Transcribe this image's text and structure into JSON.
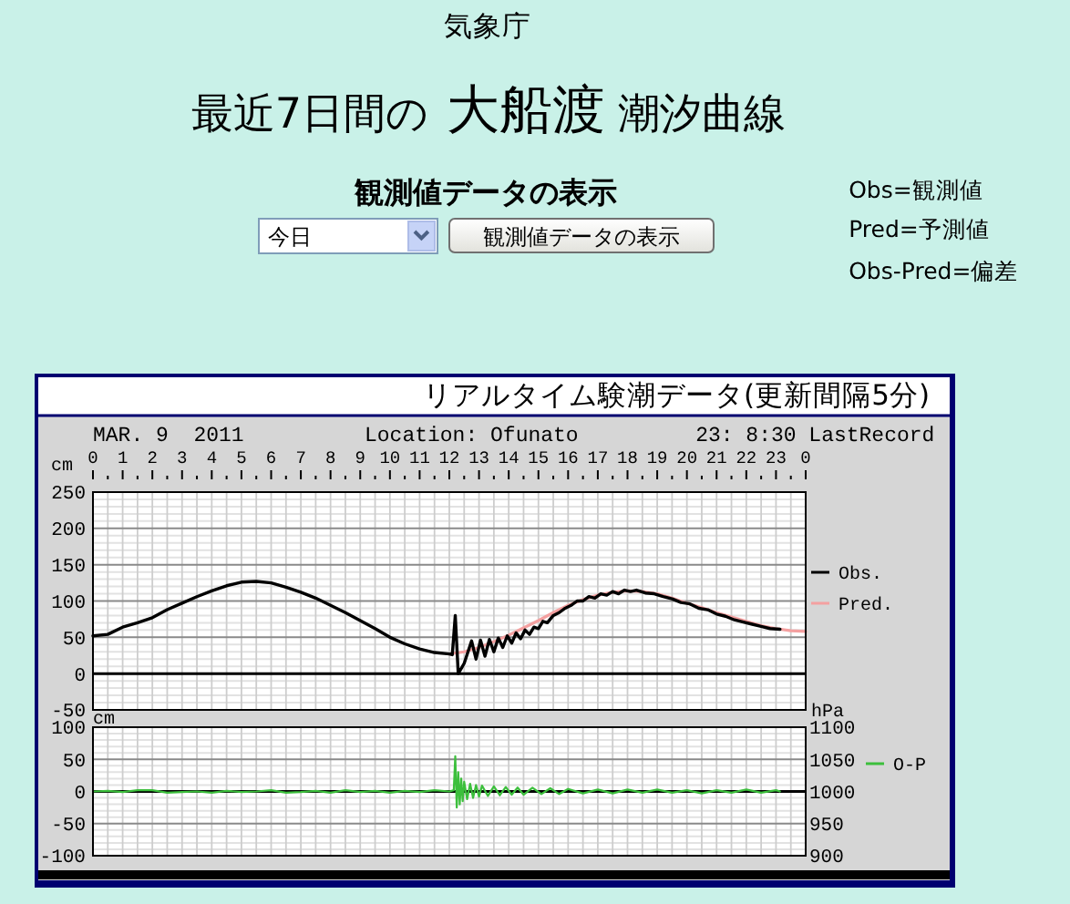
{
  "chart_data": [
    {
      "type": "line",
      "title": "最近7日間の 大船渡 潮汐曲線",
      "subtitle": "リアルタイム験潮データ(更新間隔5分)",
      "ylabel": "cm",
      "annotations": [
        "気象庁",
        "観測値データの表示",
        "今日",
        "観測値データの表示",
        "Obs=観測値",
        "Pred=予測値",
        "Obs-Pred=偏差",
        "MAR. 9  2011",
        "Location: Ofunato",
        "23: 8:30 LastRecord"
      ],
      "xlim": [
        "2011-03-09T00:00",
        "2011-03-10T00:00"
      ],
      "xticks": [
        {
          "value": "2011-03-09T00:00",
          "label": "0"
        },
        {
          "value": "2011-03-09T00:30",
          "label": null
        },
        {
          "value": "2011-03-09T01:00",
          "label": "1"
        },
        {
          "value": "2011-03-09T01:30",
          "label": null
        },
        {
          "value": "2011-03-09T02:00",
          "label": "2"
        },
        {
          "value": "2011-03-09T02:30",
          "label": null
        },
        {
          "value": "2011-03-09T03:00",
          "label": "3"
        },
        {
          "value": "2011-03-09T03:30",
          "label": null
        },
        {
          "value": "2011-03-09T04:00",
          "label": "4"
        },
        {
          "value": "2011-03-09T04:30",
          "label": null
        },
        {
          "value": "2011-03-09T05:00",
          "label": "5"
        },
        {
          "value": "2011-03-09T05:30",
          "label": null
        },
        {
          "value": "2011-03-09T06:00",
          "label": "6"
        },
        {
          "value": "2011-03-09T06:30",
          "label": null
        },
        {
          "value": "2011-03-09T07:00",
          "label": "7"
        },
        {
          "value": "2011-03-09T07:30",
          "label": null
        },
        {
          "value": "2011-03-09T08:00",
          "label": "8"
        },
        {
          "value": "2011-03-09T08:30",
          "label": null
        },
        {
          "value": "2011-03-09T09:00",
          "label": "9"
        },
        {
          "value": "2011-03-09T09:30",
          "label": null
        },
        {
          "value": "2011-03-09T10:00",
          "label": "10"
        },
        {
          "value": "2011-03-09T10:30",
          "label": null
        },
        {
          "value": "2011-03-09T11:00",
          "label": "11"
        },
        {
          "value": "2011-03-09T11:30",
          "label": null
        },
        {
          "value": "2011-03-09T12:00",
          "label": "12"
        },
        {
          "value": "2011-03-09T12:30",
          "label": null
        },
        {
          "value": "2011-03-09T13:00",
          "label": "13"
        },
        {
          "value": "2011-03-09T13:30",
          "label": null
        },
        {
          "value": "2011-03-09T14:00",
          "label": "14"
        },
        {
          "value": "2011-03-09T14:30",
          "label": null
        },
        {
          "value": "2011-03-09T15:00",
          "label": "15"
        },
        {
          "value": "2011-03-09T15:30",
          "label": null
        },
        {
          "value": "2011-03-09T16:00",
          "label": "16"
        },
        {
          "value": "2011-03-09T16:30",
          "label": null
        },
        {
          "value": "2011-03-09T17:00",
          "label": "17"
        },
        {
          "value": "2011-03-09T17:30",
          "label": null
        },
        {
          "value": "2011-03-09T18:00",
          "label": "18"
        },
        {
          "value": "2011-03-09T18:30",
          "label": null
        },
        {
          "value": "2011-03-09T19:00",
          "label": "19"
        },
        {
          "value": "2011-03-09T19:30",
          "label": null
        },
        {
          "value": "2011-03-09T20:00",
          "label": "20"
        },
        {
          "value": "2011-03-09T20:30",
          "label": null
        },
        {
          "value": "2011-03-09T21:00",
          "label": "21"
        },
        {
          "value": "2011-03-09T21:30",
          "label": null
        },
        {
          "value": "2011-03-09T22:00",
          "label": "22"
        },
        {
          "value": "2011-03-09T22:30",
          "label": null
        },
        {
          "value": "2011-03-09T23:00",
          "label": "23"
        },
        {
          "value": "2011-03-09T23:30",
          "label": null
        },
        {
          "value": "2011-03-10T00:00",
          "label": "0"
        }
      ],
      "ylim": [
        -50,
        250
      ],
      "yticks": [
        -50,
        {
          "value": -40,
          "label": null
        },
        {
          "value": -30,
          "label": null
        },
        {
          "value": -20,
          "label": null
        },
        {
          "value": -10,
          "label": null
        },
        0,
        {
          "value": 10,
          "label": null
        },
        {
          "value": 20,
          "label": null
        },
        {
          "value": 30,
          "label": null
        },
        {
          "value": 40,
          "label": null
        },
        50,
        {
          "value": 60,
          "label": null
        },
        {
          "value": 70,
          "label": null
        },
        {
          "value": 80,
          "label": null
        },
        {
          "value": 90,
          "label": null
        },
        100,
        {
          "value": 110,
          "label": null
        },
        {
          "value": 120,
          "label": null
        },
        {
          "value": 130,
          "label": null
        },
        {
          "value": 140,
          "label": null
        },
        150,
        {
          "value": 160,
          "label": null
        },
        {
          "value": 170,
          "label": null
        },
        {
          "value": 180,
          "label": null
        },
        {
          "value": 190,
          "label": null
        },
        200,
        {
          "value": 210,
          "label": null
        },
        {
          "value": 220,
          "label": null
        },
        {
          "value": 230,
          "label": null
        },
        {
          "value": 240,
          "label": null
        },
        250
      ],
      "grid": true,
      "legend": "right",
      "ref_lines": [
        {
          "axis": "y",
          "value": 0,
          "color": "#000000"
        }
      ],
      "series": [
        {
          "name": "Obs.",
          "color": "#000000",
          "x": [
            "2011-03-09T00:00",
            "2011-03-09T00:30",
            "2011-03-09T01:00",
            "2011-03-09T01:30",
            "2011-03-09T02:00",
            "2011-03-09T02:30",
            "2011-03-09T03:00",
            "2011-03-09T03:30",
            "2011-03-09T04:00",
            "2011-03-09T04:30",
            "2011-03-09T05:00",
            "2011-03-09T05:30",
            "2011-03-09T06:00",
            "2011-03-09T06:30",
            "2011-03-09T07:00",
            "2011-03-09T07:30",
            "2011-03-09T08:00",
            "2011-03-09T08:30",
            "2011-03-09T09:00",
            "2011-03-09T09:30",
            "2011-03-09T10:00",
            "2011-03-09T10:30",
            "2011-03-09T11:00",
            "2011-03-09T11:30",
            "2011-03-09T12:00",
            "2011-03-09T12:06",
            "2011-03-09T12:12",
            "2011-03-09T12:18",
            "2011-03-09T12:30",
            "2011-03-09T12:45",
            "2011-03-09T12:54",
            "2011-03-09T13:03",
            "2011-03-09T13:12",
            "2011-03-09T13:21",
            "2011-03-09T13:30",
            "2011-03-09T13:39",
            "2011-03-09T13:48",
            "2011-03-09T13:57",
            "2011-03-09T14:06",
            "2011-03-09T14:15",
            "2011-03-09T14:24",
            "2011-03-09T14:33",
            "2011-03-09T14:42",
            "2011-03-09T14:51",
            "2011-03-09T15:00",
            "2011-03-09T15:09",
            "2011-03-09T15:18",
            "2011-03-09T15:30",
            "2011-03-09T15:42",
            "2011-03-09T15:54",
            "2011-03-09T16:06",
            "2011-03-09T16:18",
            "2011-03-09T16:30",
            "2011-03-09T16:42",
            "2011-03-09T16:54",
            "2011-03-09T17:06",
            "2011-03-09T17:18",
            "2011-03-09T17:30",
            "2011-03-09T17:42",
            "2011-03-09T17:54",
            "2011-03-09T18:06",
            "2011-03-09T18:18",
            "2011-03-09T18:36",
            "2011-03-09T18:54",
            "2011-03-09T19:12",
            "2011-03-09T19:30",
            "2011-03-09T19:48",
            "2011-03-09T20:06",
            "2011-03-09T20:24",
            "2011-03-09T20:42",
            "2011-03-09T21:00",
            "2011-03-09T21:18",
            "2011-03-09T21:36",
            "2011-03-09T21:54",
            "2011-03-09T22:12",
            "2011-03-09T22:30",
            "2011-03-09T22:48",
            "2011-03-09T23:08"
          ],
          "values": [
            52,
            54,
            64,
            70,
            77,
            88,
            97,
            106,
            114,
            121,
            126,
            127,
            125,
            119,
            112,
            104,
            94,
            84,
            73,
            62,
            50,
            41,
            34,
            29,
            27,
            26,
            80,
            0,
            14,
            45,
            20,
            46,
            24,
            47,
            30,
            49,
            36,
            52,
            42,
            56,
            48,
            60,
            54,
            64,
            62,
            72,
            70,
            80,
            84,
            90,
            94,
            100,
            100,
            106,
            104,
            110,
            108,
            113,
            110,
            115,
            113,
            115,
            111,
            110,
            106,
            103,
            98,
            96,
            90,
            88,
            82,
            79,
            74,
            71,
            68,
            65,
            62,
            61
          ]
        },
        {
          "name": "Pred.",
          "color": "#f4a0a0",
          "x": [
            "2011-03-09T12:00",
            "2011-03-09T12:30",
            "2011-03-09T13:00",
            "2011-03-09T13:30",
            "2011-03-09T14:00",
            "2011-03-09T14:30",
            "2011-03-09T15:00",
            "2011-03-09T15:30",
            "2011-03-09T16:00",
            "2011-03-09T16:30",
            "2011-03-09T17:00",
            "2011-03-09T17:30",
            "2011-03-09T18:00",
            "2011-03-09T18:30",
            "2011-03-09T19:00",
            "2011-03-09T19:30",
            "2011-03-09T20:00",
            "2011-03-09T20:30",
            "2011-03-09T21:00",
            "2011-03-09T21:30",
            "2011-03-09T22:00",
            "2011-03-09T22:30",
            "2011-03-09T23:00",
            "2011-03-09T23:30",
            "2011-03-10T00:00"
          ],
          "values": [
            27,
            30,
            36,
            44,
            53,
            63,
            73,
            84,
            94,
            102,
            108,
            112,
            114,
            113,
            110,
            104,
            97,
            91,
            84,
            78,
            72,
            66,
            62,
            59,
            58
          ]
        }
      ]
    },
    {
      "type": "line",
      "ylabel": "cm",
      "y2label": "hPa",
      "tick_labels": "y",
      "xlim": [
        "2011-03-09T00:00",
        "2011-03-10T00:00"
      ],
      "xticks": [
        {
          "value": "2011-03-09T00:00",
          "label": null
        },
        {
          "value": "2011-03-09T00:30",
          "label": null
        },
        {
          "value": "2011-03-09T01:00",
          "label": null
        },
        {
          "value": "2011-03-09T01:30",
          "label": null
        },
        {
          "value": "2011-03-09T02:00",
          "label": null
        },
        {
          "value": "2011-03-09T02:30",
          "label": null
        },
        {
          "value": "2011-03-09T03:00",
          "label": null
        },
        {
          "value": "2011-03-09T03:30",
          "label": null
        },
        {
          "value": "2011-03-09T04:00",
          "label": null
        },
        {
          "value": "2011-03-09T04:30",
          "label": null
        },
        {
          "value": "2011-03-09T05:00",
          "label": null
        },
        {
          "value": "2011-03-09T05:30",
          "label": null
        },
        {
          "value": "2011-03-09T06:00",
          "label": null
        },
        {
          "value": "2011-03-09T06:30",
          "label": null
        },
        {
          "value": "2011-03-09T07:00",
          "label": null
        },
        {
          "value": "2011-03-09T07:30",
          "label": null
        },
        {
          "value": "2011-03-09T08:00",
          "label": null
        },
        {
          "value": "2011-03-09T08:30",
          "label": null
        },
        {
          "value": "2011-03-09T09:00",
          "label": null
        },
        {
          "value": "2011-03-09T09:30",
          "label": null
        },
        {
          "value": "2011-03-09T10:00",
          "label": null
        },
        {
          "value": "2011-03-09T10:30",
          "label": null
        },
        {
          "value": "2011-03-09T11:00",
          "label": null
        },
        {
          "value": "2011-03-09T11:30",
          "label": null
        },
        {
          "value": "2011-03-09T12:00",
          "label": null
        },
        {
          "value": "2011-03-09T12:30",
          "label": null
        },
        {
          "value": "2011-03-09T13:00",
          "label": null
        },
        {
          "value": "2011-03-09T13:30",
          "label": null
        },
        {
          "value": "2011-03-09T14:00",
          "label": null
        },
        {
          "value": "2011-03-09T14:30",
          "label": null
        },
        {
          "value": "2011-03-09T15:00",
          "label": null
        },
        {
          "value": "2011-03-09T15:30",
          "label": null
        },
        {
          "value": "2011-03-09T16:00",
          "label": null
        },
        {
          "value": "2011-03-09T16:30",
          "label": null
        },
        {
          "value": "2011-03-09T17:00",
          "label": null
        },
        {
          "value": "2011-03-09T17:30",
          "label": null
        },
        {
          "value": "2011-03-09T18:00",
          "label": null
        },
        {
          "value": "2011-03-09T18:30",
          "label": null
        },
        {
          "value": "2011-03-09T19:00",
          "label": null
        },
        {
          "value": "2011-03-09T19:30",
          "label": null
        },
        {
          "value": "2011-03-09T20:00",
          "label": null
        },
        {
          "value": "2011-03-09T20:30",
          "label": null
        },
        {
          "value": "2011-03-09T21:00",
          "label": null
        },
        {
          "value": "2011-03-09T21:30",
          "label": null
        },
        {
          "value": "2011-03-09T22:00",
          "label": null
        },
        {
          "value": "2011-03-09T22:30",
          "label": null
        },
        {
          "value": "2011-03-09T23:00",
          "label": null
        },
        {
          "value": "2011-03-09T23:30",
          "label": null
        },
        {
          "value": "2011-03-10T00:00",
          "label": null
        }
      ],
      "ylim": [
        -100,
        100
      ],
      "yticks": [
        -100,
        {
          "value": -90,
          "label": null
        },
        {
          "value": -80,
          "label": null
        },
        {
          "value": -70,
          "label": null
        },
        {
          "value": -60,
          "label": null
        },
        -50,
        {
          "value": -40,
          "label": null
        },
        {
          "value": -30,
          "label": null
        },
        {
          "value": -20,
          "label": null
        },
        {
          "value": -10,
          "label": null
        },
        0,
        {
          "value": 10,
          "label": null
        },
        {
          "value": 20,
          "label": null
        },
        {
          "value": 30,
          "label": null
        },
        {
          "value": 40,
          "label": null
        },
        50,
        {
          "value": 60,
          "label": null
        },
        {
          "value": 70,
          "label": null
        },
        {
          "value": 80,
          "label": null
        },
        {
          "value": 90,
          "label": null
        },
        100
      ],
      "y2lim": [
        900,
        1100
      ],
      "y2ticks": [
        900,
        950,
        1000,
        1050,
        1100
      ],
      "grid": true,
      "legend": "right",
      "ref_lines": [
        {
          "axis": "y",
          "value": 0,
          "color": "#000000"
        }
      ],
      "series": [
        {
          "name": "O-P",
          "color": "#3cbf3c",
          "x": [
            "2011-03-09T00:00",
            "2011-03-09T00:30",
            "2011-03-09T01:00",
            "2011-03-09T01:30",
            "2011-03-09T02:00",
            "2011-03-09T02:30",
            "2011-03-09T03:00",
            "2011-03-09T03:30",
            "2011-03-09T04:00",
            "2011-03-09T04:30",
            "2011-03-09T05:00",
            "2011-03-09T05:30",
            "2011-03-09T06:00",
            "2011-03-09T06:30",
            "2011-03-09T07:00",
            "2011-03-09T07:30",
            "2011-03-09T08:00",
            "2011-03-09T08:30",
            "2011-03-09T09:00",
            "2011-03-09T09:30",
            "2011-03-09T10:00",
            "2011-03-09T10:30",
            "2011-03-09T11:00",
            "2011-03-09T11:30",
            "2011-03-09T12:00",
            "2011-03-09T12:09",
            "2011-03-09T12:12",
            "2011-03-09T12:15",
            "2011-03-09T12:18",
            "2011-03-09T12:21",
            "2011-03-09T12:24",
            "2011-03-09T12:27",
            "2011-03-09T12:30",
            "2011-03-09T12:36",
            "2011-03-09T12:42",
            "2011-03-09T12:48",
            "2011-03-09T12:54",
            "2011-03-09T13:00",
            "2011-03-09T13:06",
            "2011-03-09T13:18",
            "2011-03-09T13:30",
            "2011-03-09T13:42",
            "2011-03-09T13:54",
            "2011-03-09T14:06",
            "2011-03-09T14:18",
            "2011-03-09T14:30",
            "2011-03-09T14:48",
            "2011-03-09T15:06",
            "2011-03-09T15:24",
            "2011-03-09T15:42",
            "2011-03-09T16:00",
            "2011-03-09T16:30",
            "2011-03-09T17:00",
            "2011-03-09T17:30",
            "2011-03-09T18:00",
            "2011-03-09T18:30",
            "2011-03-09T19:00",
            "2011-03-09T19:30",
            "2011-03-09T20:00",
            "2011-03-09T20:30",
            "2011-03-09T21:00",
            "2011-03-09T21:30",
            "2011-03-09T22:00",
            "2011-03-09T22:30",
            "2011-03-09T23:00",
            "2011-03-09T23:08"
          ],
          "values": [
            0,
            1,
            -1,
            2,
            2,
            -2,
            -1,
            0,
            -2,
            1,
            -1,
            0,
            2,
            -2,
            -1,
            1,
            -2,
            2,
            -1,
            1,
            -2,
            1,
            -1,
            2,
            0,
            2,
            55,
            -25,
            30,
            -20,
            20,
            -15,
            15,
            -12,
            12,
            -10,
            10,
            -8,
            9,
            -7,
            8,
            -6,
            7,
            -5,
            6,
            -5,
            6,
            -4,
            5,
            -4,
            4,
            -3,
            3,
            -3,
            3,
            -2,
            3,
            -2,
            2,
            -3,
            2,
            -2,
            3,
            -2,
            2,
            0
          ]
        }
      ]
    }
  ]
}
